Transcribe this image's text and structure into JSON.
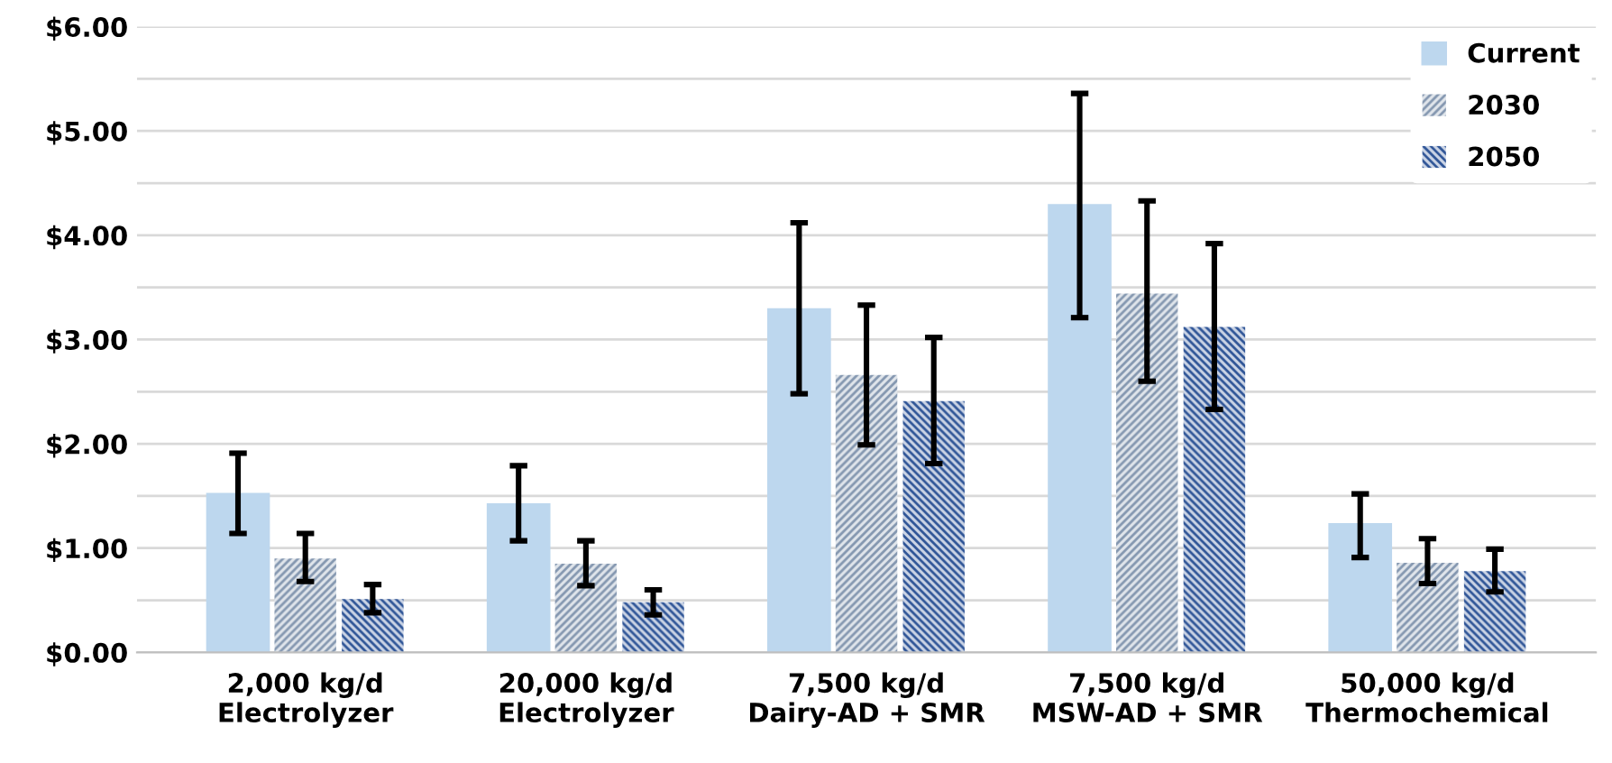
{
  "chart_data": {
    "type": "bar",
    "categories": [
      "2,000 kg/d\nElectrolyzer",
      "20,000 kg/d\nElectrolyzer",
      "7,500 kg/d\nDairy-AD + SMR",
      "7,500 kg/d\nMSW-AD + SMR",
      "50,000 kg/d\nThermochemical"
    ],
    "series": [
      {
        "name": "Current",
        "color": "#bdd7ee",
        "values": [
          1.52,
          1.42,
          3.29,
          4.29,
          1.23
        ],
        "errors": [
          [
            1.14,
            1.91
          ],
          [
            1.07,
            1.79
          ],
          [
            2.48,
            4.12
          ],
          [
            3.21,
            5.36
          ],
          [
            0.91,
            1.52
          ]
        ]
      },
      {
        "name": "2030",
        "color": "#8497b0",
        "values": [
          0.9,
          0.85,
          2.66,
          3.44,
          0.86
        ],
        "errors": [
          [
            0.68,
            1.14
          ],
          [
            0.64,
            1.07
          ],
          [
            1.99,
            3.33
          ],
          [
            2.6,
            4.33
          ],
          [
            0.66,
            1.09
          ]
        ]
      },
      {
        "name": "2050",
        "color": "#2f5597",
        "values": [
          0.51,
          0.48,
          2.41,
          3.12,
          0.78
        ],
        "errors": [
          [
            0.38,
            0.65
          ],
          [
            0.36,
            0.6
          ],
          [
            1.81,
            3.02
          ],
          [
            2.33,
            3.92
          ],
          [
            0.58,
            0.99
          ]
        ]
      }
    ],
    "ylim": [
      0,
      6
    ],
    "yticks": [
      {
        "value": 0,
        "label": "$0.00"
      },
      {
        "value": 0.5,
        "label": null
      },
      {
        "value": 1,
        "label": "$1.00"
      },
      {
        "value": 1.5,
        "label": null
      },
      {
        "value": 2,
        "label": "$2.00"
      },
      {
        "value": 2.5,
        "label": null
      },
      {
        "value": 3,
        "label": "$3.00"
      },
      {
        "value": 3.5,
        "label": null
      },
      {
        "value": 4,
        "label": "$4.00"
      },
      {
        "value": 4.5,
        "label": null
      },
      {
        "value": 5,
        "label": "$5.00"
      },
      {
        "value": 5.5,
        "label": null
      },
      {
        "value": 6,
        "label": "$6.00"
      }
    ],
    "grid": "y",
    "legend": "top right"
  }
}
